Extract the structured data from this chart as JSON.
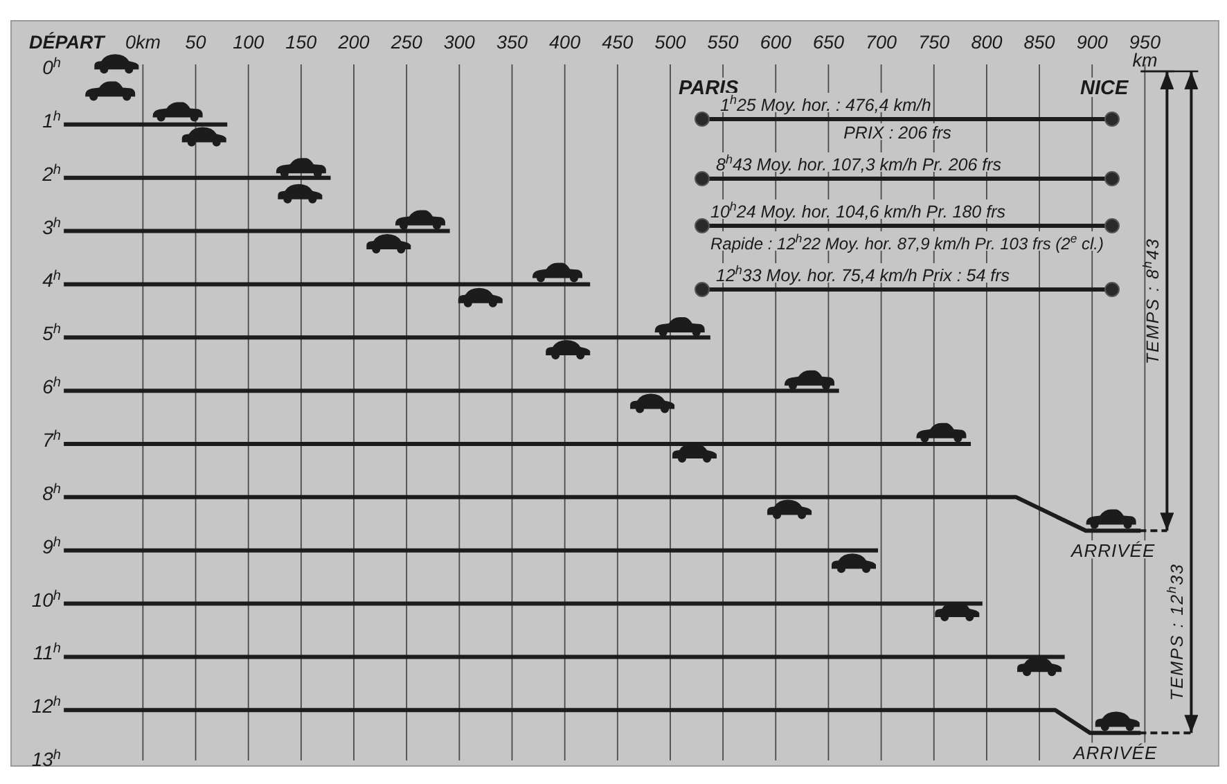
{
  "chart_data": {
    "type": "line",
    "ylabel": "DÉPART",
    "xlabel": "km",
    "xlim": [
      -125,
      1020
    ],
    "xticks": [
      {
        "value": 0,
        "label": "0km"
      },
      50,
      100,
      150,
      200,
      250,
      300,
      350,
      400,
      450,
      500,
      550,
      600,
      650,
      700,
      750,
      800,
      850,
      900,
      950
    ],
    "ylim": [
      13.05,
      -0.95
    ],
    "yticks": [
      {
        "value": 0,
        "label": "0$^{h}$"
      },
      {
        "value": 1,
        "label": "1$^{h}$"
      },
      {
        "value": 2,
        "label": "2$^{h}$"
      },
      {
        "value": 3,
        "label": "3$^{h}$"
      },
      {
        "value": 4,
        "label": "4$^{h}$"
      },
      {
        "value": 5,
        "label": "5$^{h}$"
      },
      {
        "value": 6,
        "label": "6$^{h}$"
      },
      {
        "value": 7,
        "label": "7$^{h}$"
      },
      {
        "value": 8,
        "label": "8$^{h}$"
      },
      {
        "value": 9,
        "label": "9$^{h}$"
      },
      {
        "value": 10,
        "label": "10$^{h}$"
      },
      {
        "value": 11,
        "label": "11$^{h}$"
      },
      {
        "value": 12,
        "label": "12$^{h}$"
      },
      {
        "value": 13,
        "label": "13$^{h}$"
      }
    ],
    "grid": "x",
    "series": [
      {
        "color": "#1c1c1c",
        "x": [
          -75,
          80
        ],
        "values": [
          1,
          1
        ]
      },
      {
        "color": "#1c1c1c",
        "x": [
          -75,
          178
        ],
        "values": [
          2,
          2
        ]
      },
      {
        "color": "#1c1c1c",
        "x": [
          -75,
          291
        ],
        "values": [
          3,
          3
        ]
      },
      {
        "color": "#1c1c1c",
        "x": [
          -75,
          424
        ],
        "values": [
          4,
          4
        ]
      },
      {
        "color": "#1c1c1c",
        "x": [
          -75,
          538
        ],
        "values": [
          5,
          5
        ]
      },
      {
        "color": "#1c1c1c",
        "x": [
          -75,
          660
        ],
        "values": [
          6,
          6
        ]
      },
      {
        "color": "#1c1c1c",
        "x": [
          -75,
          785
        ],
        "values": [
          7,
          7
        ]
      },
      {
        "color": "#1c1c1c",
        "x": [
          -75,
          828,
          894,
          946
        ],
        "values": [
          8,
          8,
          8.63,
          8.63
        ]
      },
      {
        "color": "#1c1c1c",
        "x": [
          -75,
          697
        ],
        "values": [
          9,
          9
        ]
      },
      {
        "color": "#1c1c1c",
        "x": [
          -75,
          796
        ],
        "values": [
          10,
          10
        ]
      },
      {
        "color": "#1c1c1c",
        "x": [
          -75,
          874
        ],
        "values": [
          11,
          11
        ]
      },
      {
        "color": "#1c1c1c",
        "x": [
          -75,
          865,
          898,
          946
        ],
        "values": [
          12,
          12,
          12.43,
          12.43
        ]
      },
      {
        "type": "scatter",
        "color": "#1c1c1c",
        "x": [
          -31,
          33,
          150,
          263,
          393,
          509,
          632,
          757,
          918
        ],
        "values": [
          0.37,
          0.76,
          1.81,
          2.79,
          3.78,
          4.8,
          5.8,
          6.79,
          8.41
        ]
      },
      {
        "type": "scatter",
        "color": "#1c1c1c",
        "x": [
          -25,
          58,
          149,
          233,
          320,
          403,
          483,
          523,
          613,
          674,
          772,
          850,
          924
        ],
        "values": [
          -0.14,
          1.23,
          2.3,
          3.24,
          4.25,
          5.23,
          6.24,
          7.17,
          8.23,
          9.24,
          10.15,
          11.18,
          12.21
        ]
      },
      {
        "color": "#1a1a1a",
        "x": [
          971,
          971
        ],
        "values": [
          0,
          8.63
        ]
      },
      {
        "color": "#1a1a1a",
        "x": [
          994,
          994
        ],
        "values": [
          0,
          12.43
        ]
      }
    ],
    "annotations": [
      "PARIS",
      "NICE",
      "1$^{h}$25 Moy. hor. : 476,4 km/h",
      "PRIX : 206 frs",
      "8$^{h}$43 Moy. hor. 107,3 km/h Pr. 206 frs",
      "10$^{h}$24 Moy. hor. 104,6 km/h Pr. 180 frs",
      "Rapide : 12$^{h}$22 Moy. hor. 87,9 km/h Pr. 103 frs (2$^{e}$ cl.)",
      "12$^{h}$33 Moy. hor. 75,4 km/h Prix : 54 frs",
      {
        "text": "ARRIVÉE",
        "x": 920,
        "y": 8.63
      },
      {
        "text": "ARRIVÉE",
        "x": 922,
        "y": 12.43
      },
      "TEMPS : 8$^{h}$43",
      "TEMPS : 12$^{h}$33"
    ]
  }
}
